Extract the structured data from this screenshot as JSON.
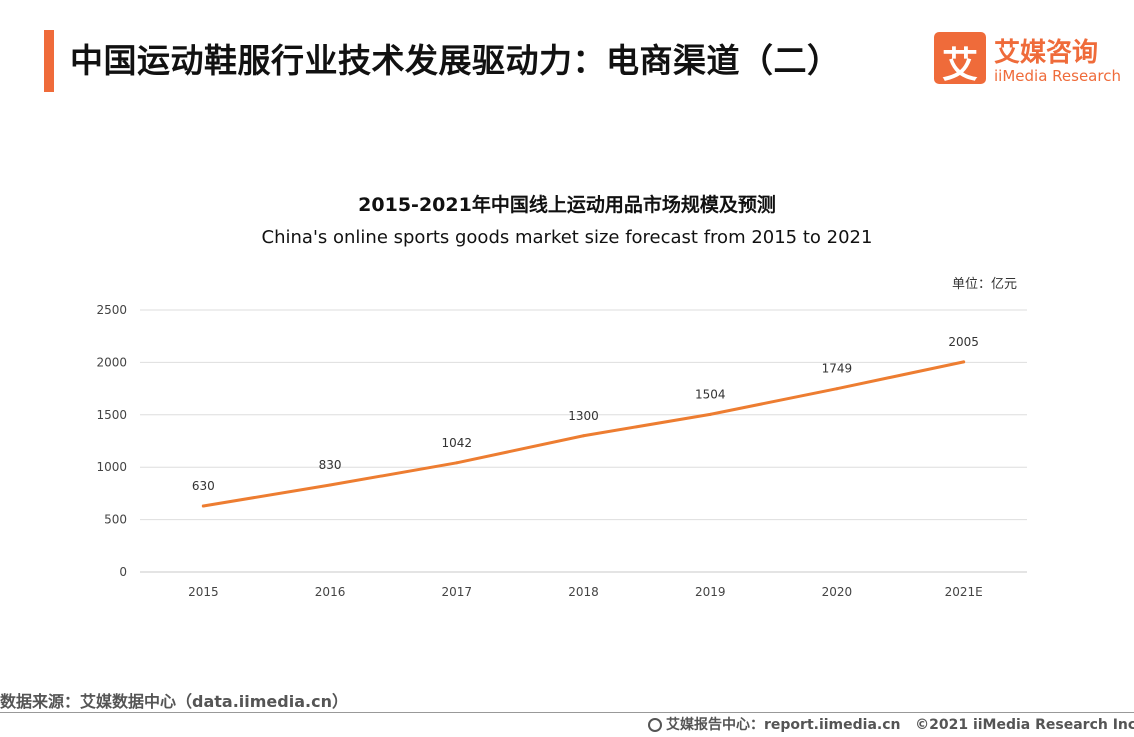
{
  "header": {
    "title": "中国运动鞋服行业技术发展驱动力：电商渠道（二）"
  },
  "logo": {
    "mark": "艾",
    "name_cn": "艾媒咨询",
    "name_en": "iiMedia Research"
  },
  "unit": "单位：亿元",
  "chart_data": {
    "type": "line",
    "title": "2015-2021年中国线上运动用品市场规模及预测",
    "subtitle": "China's online sports goods market size forecast from 2015 to 2021",
    "xlabel": "",
    "ylabel": "",
    "categories": [
      "2015",
      "2016",
      "2017",
      "2018",
      "2019",
      "2020",
      "2021E"
    ],
    "series": [
      {
        "values": [
          630,
          830,
          1042,
          1300,
          1504,
          1749,
          2005
        ],
        "color": "#ed7d31"
      }
    ],
    "ylim": [
      0,
      2500
    ],
    "yticks": [
      0,
      500,
      1000,
      1500,
      2000,
      2500
    ],
    "grid": true,
    "data_labels": true
  },
  "footer": {
    "source": "数据来源：艾媒数据中心（data.iimedia.cn）",
    "center": "艾媒报告中心：report.iimedia.cn",
    "copyright": "©2021  iiMedia Research  Inc"
  }
}
